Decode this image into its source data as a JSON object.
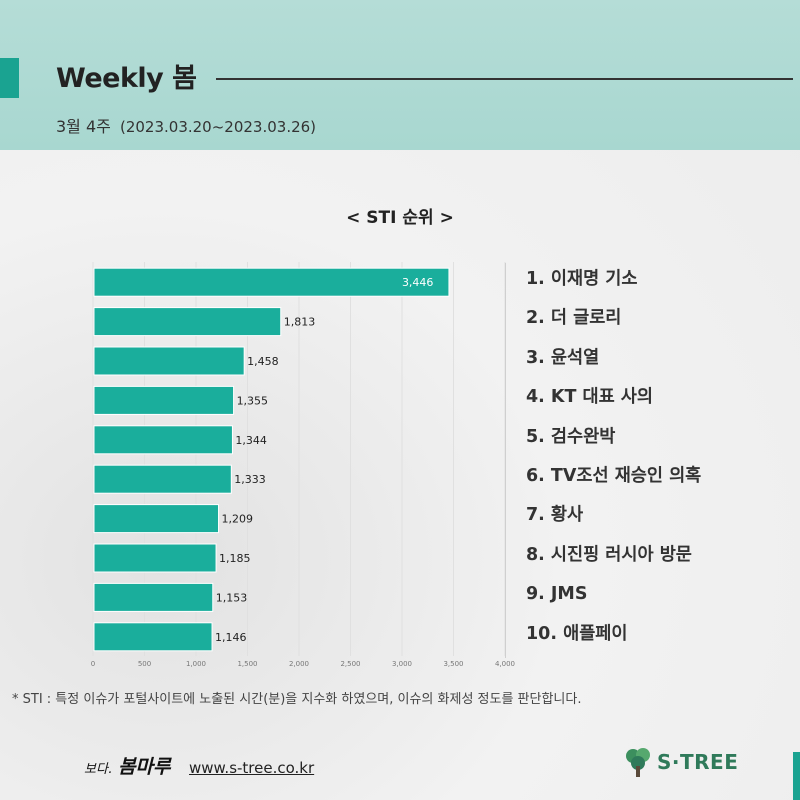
{
  "header": {
    "title": "Weekly 봄",
    "week": "3월 4주",
    "range": "(2023.03.20~2023.03.26)"
  },
  "chart_data": {
    "type": "bar",
    "orientation": "horizontal",
    "title": "< STI 순위 >",
    "categories": [
      "1. 이재명 기소",
      "2. 더 글로리",
      "3. 윤석열",
      "4. KT 대표 사의",
      "5. 검수완박",
      "6. TV조선 재승인 의혹",
      "7. 황사",
      "8. 시진핑 러시아 방문",
      "9. JMS",
      "10. 애플페이"
    ],
    "values": [
      3446,
      1813,
      1458,
      1355,
      1344,
      1333,
      1209,
      1185,
      1153,
      1146
    ],
    "value_labels": [
      "3,446",
      "1,813",
      "1,458",
      "1,355",
      "1,344",
      "1,333",
      "1,209",
      "1,185",
      "1,153",
      "1,146"
    ],
    "xlim": [
      0,
      4000
    ],
    "x_ticks": [
      0,
      500,
      1000,
      1500,
      2000,
      2500,
      3000,
      3500,
      4000
    ],
    "x_tick_labels": [
      "0",
      "500",
      "1,000",
      "1,500",
      "2,000",
      "2,500",
      "3,000",
      "3,500",
      "4,000"
    ],
    "bar_color": "#1aae9c",
    "grid": true
  },
  "footnote": "* STI : 특정 이슈가 포털사이트에 노출된 시간(분)을 지수화 하였으며, 이슈의 화제성 정도를 판단합니다.",
  "footer": {
    "logo_small": "보다.",
    "logo_main": "봄마루",
    "website": "www.s-tree.co.kr",
    "brand": "S·TREE"
  },
  "colors": {
    "accent": "#1aa391",
    "header_bg": "#acd9d2"
  }
}
